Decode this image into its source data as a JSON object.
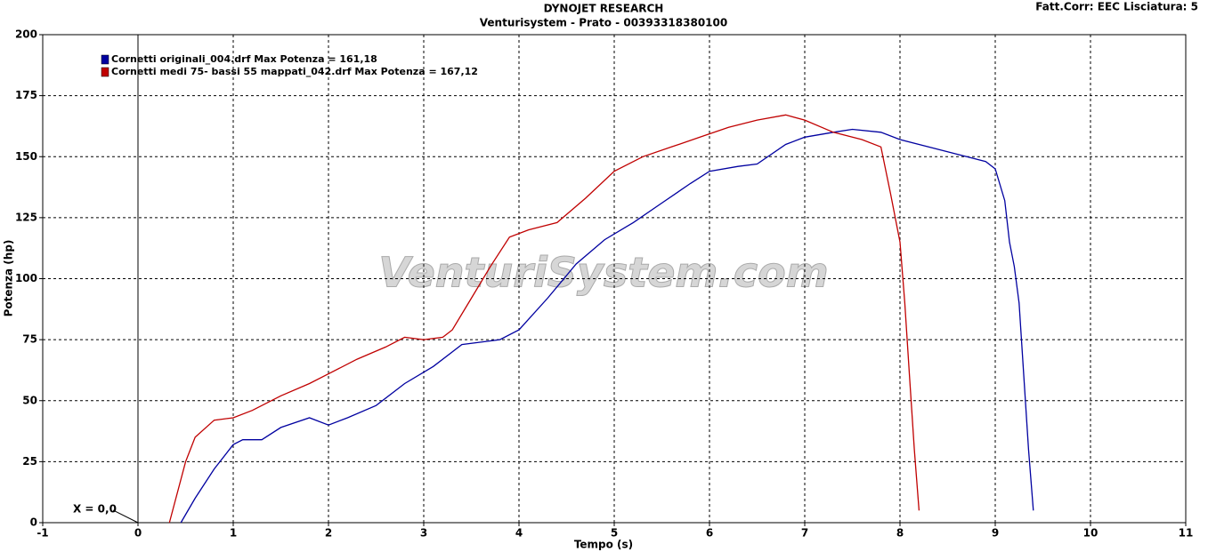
{
  "chart_data": {
    "type": "line",
    "title": "DYNOJET RESEARCH",
    "subtitle": "Venturisystem - Prato - 00393318380100",
    "corner_note": "Fatt.Corr: EEC  Lisciatura: 5",
    "annotation": "X = 0,0",
    "watermark": "VenturiSystem.com",
    "xlabel": "Tempo (s)",
    "ylabel": "Potenza (hp)",
    "xlim": [
      -1,
      11
    ],
    "ylim": [
      0,
      200
    ],
    "xticks": [
      -1,
      0,
      1,
      2,
      3,
      4,
      5,
      6,
      7,
      8,
      9,
      10,
      11
    ],
    "yticks": [
      0,
      25,
      50,
      75,
      100,
      125,
      150,
      175,
      200
    ],
    "grid": true,
    "series": [
      {
        "name": "Cornetti originali_004.drf Max Potenza = 161,18",
        "color": "#0000a0",
        "x": [
          0.45,
          0.6,
          0.8,
          1.0,
          1.1,
          1.3,
          1.5,
          1.8,
          2.0,
          2.2,
          2.5,
          2.8,
          3.1,
          3.4,
          3.8,
          4.0,
          4.3,
          4.6,
          4.9,
          5.2,
          5.5,
          5.8,
          6.0,
          6.3,
          6.5,
          6.8,
          7.0,
          7.3,
          7.5,
          7.8,
          8.0,
          8.3,
          8.6,
          8.9,
          9.0,
          9.1,
          9.15,
          9.2,
          9.25,
          9.3,
          9.35,
          9.4
        ],
        "values": [
          0,
          10,
          22,
          32,
          34,
          34,
          39,
          43,
          40,
          43,
          48,
          57,
          64,
          73,
          75,
          79,
          92,
          106,
          116,
          123,
          131,
          139,
          144,
          146,
          147,
          155,
          158,
          160,
          161.2,
          160,
          157,
          154,
          151,
          148,
          145,
          132,
          115,
          105,
          90,
          60,
          30,
          5
        ]
      },
      {
        "name": "Cornetti medi 75- bassi 55 mappati_042.drf Max Potenza = 167,12",
        "color": "#c00000",
        "x": [
          0.33,
          0.5,
          0.6,
          0.8,
          1.0,
          1.2,
          1.5,
          1.8,
          2.0,
          2.3,
          2.6,
          2.8,
          3.0,
          3.2,
          3.3,
          3.5,
          3.7,
          3.9,
          4.1,
          4.4,
          4.7,
          5.0,
          5.3,
          5.6,
          5.9,
          6.2,
          6.5,
          6.8,
          7.0,
          7.3,
          7.6,
          7.8,
          7.9,
          8.0,
          8.05,
          8.1,
          8.15,
          8.2
        ],
        "values": [
          0,
          25,
          35,
          42,
          43,
          46,
          52,
          57,
          61,
          67,
          72,
          76,
          75,
          76,
          79,
          92,
          105,
          117,
          120,
          123,
          133,
          144,
          150,
          154,
          158,
          162,
          165,
          167.1,
          165,
          160,
          157,
          154,
          135,
          115,
          90,
          60,
          30,
          5
        ]
      }
    ]
  }
}
